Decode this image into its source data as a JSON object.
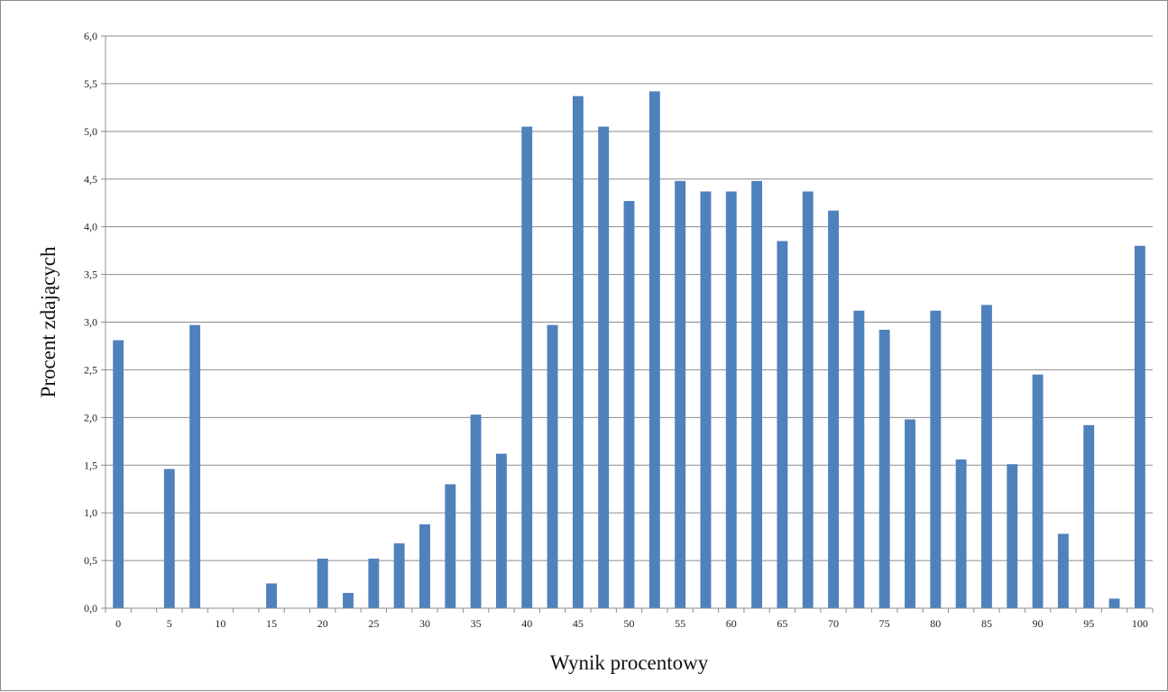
{
  "chart_data": {
    "type": "bar",
    "xlabel": "Wynik procentowy",
    "ylabel": "Procent zdających",
    "ylim": [
      0,
      6
    ],
    "y_ticks": [
      "0,0",
      "0,5",
      "1,0",
      "1,5",
      "2,0",
      "2,5",
      "3,0",
      "3,5",
      "4,0",
      "4,5",
      "5,0",
      "5,5",
      "6,0"
    ],
    "grid": true,
    "bar_color": "#4f81bd",
    "categories": [
      "0",
      "2,5",
      "5",
      "7,5",
      "10",
      "12,5",
      "15",
      "17,5",
      "20",
      "22,5",
      "25",
      "27,5",
      "30",
      "32,5",
      "35",
      "37,5",
      "40",
      "42,5",
      "45",
      "47,5",
      "50",
      "52,5",
      "55",
      "57,5",
      "60",
      "62,5",
      "65",
      "67,5",
      "70",
      "72,5",
      "75",
      "77,5",
      "80",
      "82,5",
      "85",
      "87,5",
      "90",
      "92,5",
      "95",
      "97,5",
      "100"
    ],
    "x_tick_labels": [
      "0",
      "",
      "5",
      "",
      "10",
      "",
      "15",
      "",
      "20",
      "",
      "25",
      "",
      "30",
      "",
      "35",
      "",
      "40",
      "",
      "45",
      "",
      "50",
      "",
      "55",
      "",
      "60",
      "",
      "65",
      "",
      "70",
      "",
      "75",
      "",
      "80",
      "",
      "85",
      "",
      "90",
      "",
      "95",
      "",
      "100"
    ],
    "values": [
      2.81,
      0,
      1.46,
      2.97,
      0,
      0,
      0.26,
      0,
      0.52,
      0.16,
      0.52,
      0.68,
      0.88,
      1.3,
      2.03,
      1.62,
      5.05,
      2.97,
      5.37,
      5.05,
      4.27,
      5.42,
      4.48,
      4.37,
      4.37,
      4.48,
      3.85,
      4.37,
      4.17,
      3.12,
      2.92,
      1.98,
      3.12,
      1.56,
      3.18,
      1.51,
      2.45,
      0.78,
      1.92,
      0.1,
      3.8
    ]
  }
}
